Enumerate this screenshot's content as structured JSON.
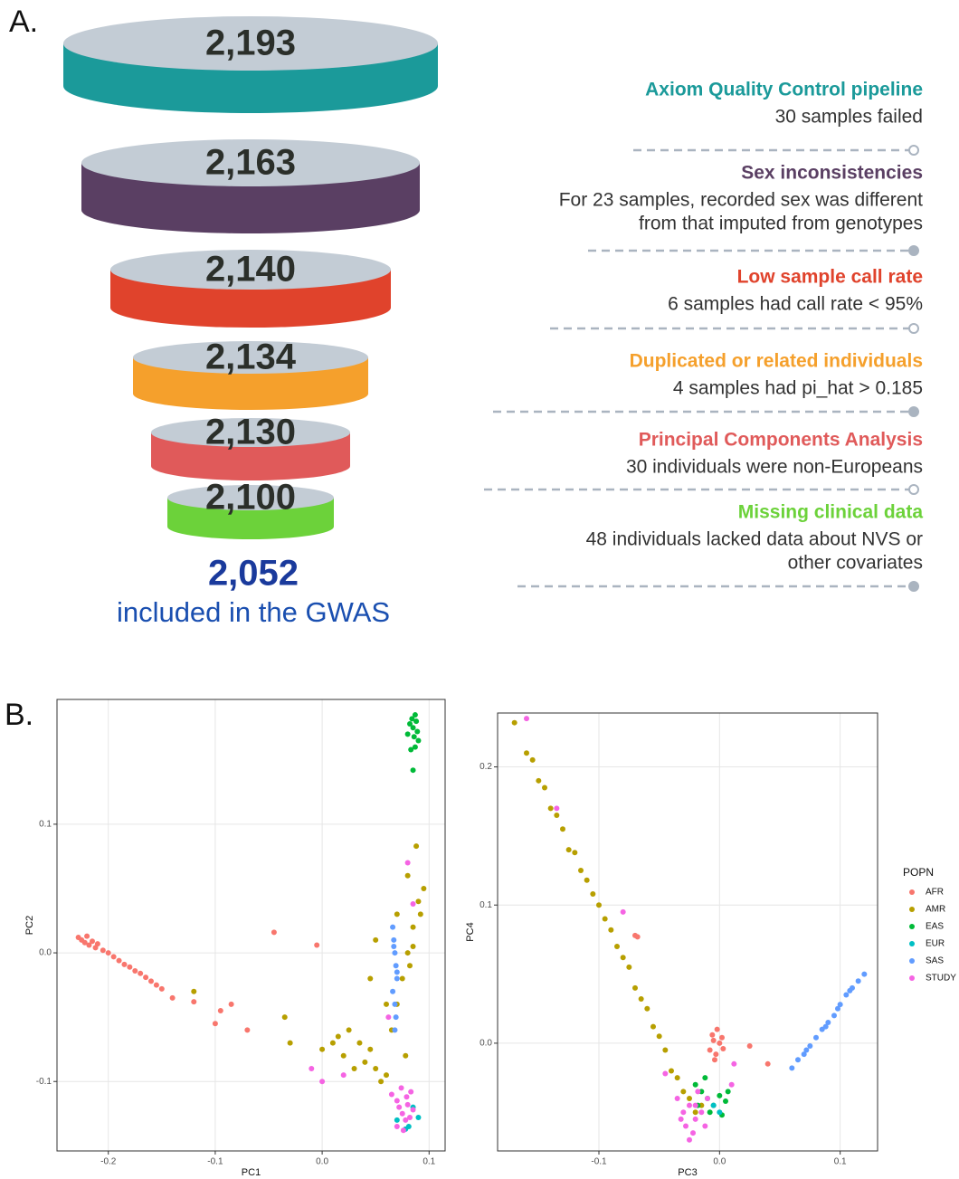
{
  "panel_labels": [
    "A.",
    "B."
  ],
  "chart_data": [
    {
      "type": "funnel",
      "values": [
        2193,
        2163,
        2140,
        2134,
        2130,
        2100
      ],
      "value_labels": [
        "2,193",
        "2,163",
        "2,140",
        "2,134",
        "2,130",
        "2,100"
      ],
      "colors": [
        "#1b9a9a",
        "#5a3f63",
        "#e0432c",
        "#f5a02c",
        "#e05a5a",
        "#6cd23a"
      ],
      "stages": [
        {
          "title": "Axiom Quality Control pipeline",
          "description": [
            "30 samples failed"
          ]
        },
        {
          "title": "Sex inconsistencies",
          "description": [
            "For 23 samples, recorded sex was different",
            "from that imputed from genotypes"
          ]
        },
        {
          "title": "Low sample call rate",
          "description": [
            "6 samples had call rate < 95%"
          ]
        },
        {
          "title": "Duplicated or related individuals",
          "description": [
            "4 samples had pi_hat > 0.185"
          ]
        },
        {
          "title": "Principal Components Analysis",
          "description": [
            "30 individuals were non-Europeans"
          ]
        },
        {
          "title": "Missing clinical data",
          "description": [
            "48 individuals lacked data about NVS or",
            "other covariates"
          ]
        }
      ],
      "result_value": 2052,
      "result_label": "2,052",
      "result_text": "included in the GWAS"
    },
    {
      "type": "scatter",
      "xlabel": "PC1",
      "ylabel": "PC2",
      "xlim": [
        -0.248,
        0.115
      ],
      "ylim": [
        -0.154,
        0.197
      ],
      "xticks": [
        -0.2,
        -0.1,
        {
          "value": 0,
          "label": "0.0"
        },
        0.1
      ],
      "yticks": [
        -0.1,
        {
          "value": 0,
          "label": "0.0"
        },
        0.1
      ],
      "grid": true,
      "series": [
        {
          "color": "#f8766d",
          "x": [
            -0.228,
            -0.225,
            -0.222,
            -0.22,
            -0.218,
            -0.215,
            -0.212,
            -0.21,
            -0.205,
            -0.2,
            -0.195,
            -0.19,
            -0.185,
            -0.18,
            -0.175,
            -0.17,
            -0.165,
            -0.16,
            -0.155,
            -0.15,
            -0.14,
            -0.12,
            -0.1,
            -0.095,
            -0.085,
            -0.07,
            -0.045,
            -0.005
          ],
          "values": [
            0.012,
            0.01,
            0.008,
            0.013,
            0.006,
            0.009,
            0.004,
            0.007,
            0.002,
            0.0,
            -0.003,
            -0.006,
            -0.009,
            -0.011,
            -0.014,
            -0.016,
            -0.019,
            -0.022,
            -0.025,
            -0.028,
            -0.035,
            -0.038,
            -0.055,
            -0.045,
            -0.04,
            -0.06,
            0.016,
            0.006
          ]
        },
        {
          "color": "#b79f00",
          "x": [
            -0.12,
            -0.035,
            -0.03,
            0.0,
            0.01,
            0.015,
            0.02,
            0.025,
            0.03,
            0.035,
            0.04,
            0.045,
            0.05,
            0.055,
            0.06,
            0.065,
            0.07,
            0.075,
            0.08,
            0.085,
            0.09,
            0.095,
            0.088,
            0.092,
            0.082,
            0.078,
            0.05,
            0.045,
            0.06,
            0.07,
            0.08,
            0.085
          ],
          "values": [
            -0.03,
            -0.05,
            -0.07,
            -0.075,
            -0.07,
            -0.065,
            -0.08,
            -0.06,
            -0.09,
            -0.07,
            -0.085,
            -0.075,
            -0.09,
            -0.1,
            -0.095,
            -0.06,
            -0.04,
            -0.02,
            0.0,
            0.02,
            0.04,
            0.05,
            0.083,
            0.03,
            -0.01,
            -0.08,
            0.01,
            -0.02,
            -0.04,
            0.03,
            0.06,
            0.005
          ]
        },
        {
          "color": "#00ba38",
          "x": [
            0.08,
            0.082,
            0.084,
            0.085,
            0.086,
            0.087,
            0.088,
            0.089,
            0.09,
            0.083,
            0.087,
            0.085
          ],
          "values": [
            0.17,
            0.178,
            0.182,
            0.175,
            0.168,
            0.16,
            0.18,
            0.172,
            0.165,
            0.158,
            0.185,
            0.142
          ]
        },
        {
          "color": "#00bfc4",
          "x": [
            0.07,
            0.078,
            0.085,
            0.09,
            0.081
          ],
          "values": [
            -0.13,
            -0.137,
            -0.12,
            -0.128,
            -0.135
          ]
        },
        {
          "color": "#619cff",
          "x": [
            0.066,
            0.067,
            0.068,
            0.069,
            0.07,
            0.066,
            0.068,
            0.069,
            0.067,
            0.07,
            0.068
          ],
          "values": [
            0.02,
            0.01,
            0.0,
            -0.01,
            -0.02,
            -0.03,
            -0.04,
            -0.05,
            0.005,
            -0.015,
            -0.06
          ]
        },
        {
          "color": "#f564e3",
          "x": [
            -0.01,
            0.0,
            0.02,
            0.065,
            0.07,
            0.072,
            0.075,
            0.078,
            0.08,
            0.082,
            0.085,
            0.07,
            0.074,
            0.079,
            0.083,
            0.076,
            0.085,
            0.08,
            0.062
          ],
          "values": [
            -0.09,
            -0.1,
            -0.095,
            -0.11,
            -0.115,
            -0.12,
            -0.125,
            -0.13,
            -0.118,
            -0.128,
            -0.122,
            -0.135,
            -0.105,
            -0.112,
            -0.108,
            -0.138,
            0.038,
            0.07,
            -0.05
          ]
        }
      ]
    },
    {
      "type": "scatter",
      "xlabel": "PC3",
      "ylabel": "PC4",
      "xlim": [
        -0.184,
        0.131
      ],
      "ylim": [
        -0.078,
        0.239
      ],
      "xticks": [
        -0.1,
        {
          "value": 0,
          "label": "0.0"
        },
        0.1
      ],
      "yticks": [
        {
          "value": 0,
          "label": "0.0"
        },
        0.1,
        0.2
      ],
      "grid": true,
      "legend_title": "POPN",
      "legend": "right",
      "series": [
        {
          "name": "AFR",
          "color": "#f8766d",
          "x": [
            -0.07,
            -0.068,
            -0.008,
            -0.005,
            -0.003,
            0.0,
            0.002,
            -0.006,
            -0.002,
            0.003,
            -0.004,
            0.04,
            0.025
          ],
          "values": [
            0.078,
            0.077,
            -0.005,
            0.002,
            -0.008,
            0.0,
            0.004,
            0.006,
            0.01,
            -0.004,
            -0.012,
            -0.015,
            -0.002
          ]
        },
        {
          "name": "AMR",
          "color": "#b79f00",
          "x": [
            -0.17,
            -0.16,
            -0.155,
            -0.15,
            -0.145,
            -0.14,
            -0.135,
            -0.13,
            -0.125,
            -0.12,
            -0.115,
            -0.11,
            -0.105,
            -0.1,
            -0.095,
            -0.09,
            -0.085,
            -0.08,
            -0.075,
            -0.07,
            -0.065,
            -0.06,
            -0.055,
            -0.05,
            -0.045,
            -0.04,
            -0.035,
            -0.03,
            -0.025,
            -0.02,
            -0.015
          ],
          "values": [
            0.232,
            0.21,
            0.205,
            0.19,
            0.185,
            0.17,
            0.165,
            0.155,
            0.14,
            0.138,
            0.125,
            0.118,
            0.108,
            0.1,
            0.09,
            0.082,
            0.07,
            0.062,
            0.055,
            0.04,
            0.032,
            0.025,
            0.012,
            0.005,
            -0.005,
            -0.02,
            -0.025,
            -0.035,
            -0.04,
            -0.05,
            -0.045
          ]
        },
        {
          "name": "EAS",
          "color": "#00ba38",
          "x": [
            -0.02,
            -0.015,
            -0.01,
            -0.005,
            0.0,
            0.005,
            -0.012,
            -0.008,
            0.002,
            -0.018,
            0.007
          ],
          "values": [
            -0.03,
            -0.035,
            -0.04,
            -0.045,
            -0.038,
            -0.042,
            -0.025,
            -0.05,
            -0.052,
            -0.045,
            -0.035
          ]
        },
        {
          "name": "EUR",
          "color": "#00bfc4",
          "x": [
            -0.005,
            0.0
          ],
          "values": [
            -0.045,
            -0.05
          ]
        },
        {
          "name": "SAS",
          "color": "#619cff",
          "x": [
            0.06,
            0.065,
            0.07,
            0.075,
            0.08,
            0.085,
            0.09,
            0.095,
            0.1,
            0.105,
            0.11,
            0.115,
            0.12,
            0.072,
            0.088,
            0.098,
            0.108
          ],
          "values": [
            -0.018,
            -0.012,
            -0.008,
            -0.002,
            0.004,
            0.01,
            0.015,
            0.02,
            0.028,
            0.035,
            0.04,
            0.045,
            0.05,
            -0.005,
            0.012,
            0.025,
            0.038
          ]
        },
        {
          "name": "STUDY",
          "color": "#f564e3",
          "x": [
            -0.16,
            -0.135,
            -0.08,
            -0.035,
            -0.03,
            -0.025,
            -0.02,
            -0.015,
            -0.01,
            -0.028,
            -0.022,
            -0.018,
            -0.012,
            -0.032,
            -0.025,
            -0.02,
            0.01,
            0.012,
            -0.045
          ],
          "values": [
            0.235,
            0.17,
            0.095,
            -0.04,
            -0.05,
            -0.045,
            -0.055,
            -0.05,
            -0.04,
            -0.06,
            -0.065,
            -0.035,
            -0.06,
            -0.055,
            -0.07,
            -0.045,
            -0.03,
            -0.015,
            -0.022
          ]
        }
      ]
    }
  ]
}
